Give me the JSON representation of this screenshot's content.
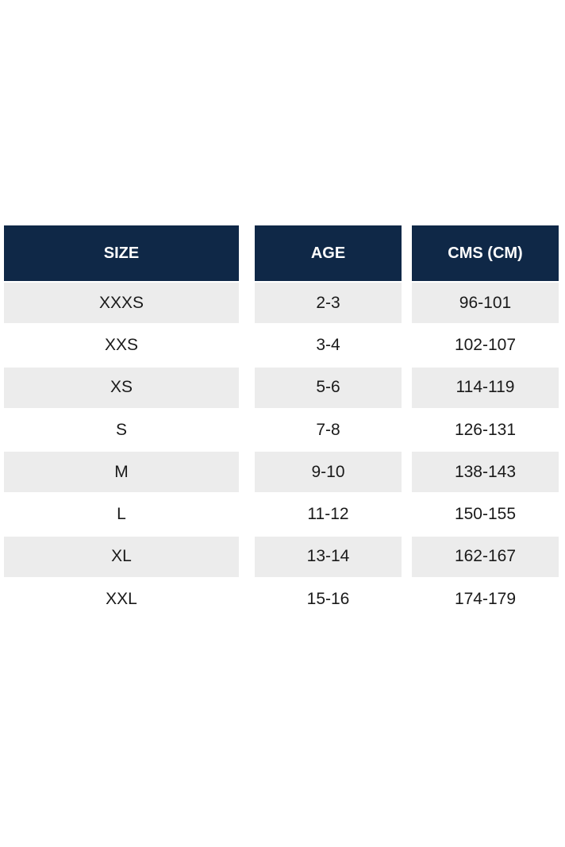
{
  "table": {
    "header": [
      "SIZE",
      "AGE",
      "CMS (CM)"
    ],
    "rows": [
      [
        "XXXS",
        "2-3",
        "96-101"
      ],
      [
        "XXS",
        "3-4",
        "102-107"
      ],
      [
        "XS",
        "5-6",
        "114-119"
      ],
      [
        "S",
        "7-8",
        "126-131"
      ],
      [
        "M",
        "9-10",
        "138-143"
      ],
      [
        "L",
        "11-12",
        "150-155"
      ],
      [
        "XL",
        "13-14",
        "162-167"
      ],
      [
        "XXL",
        "15-16",
        "174-179"
      ]
    ]
  }
}
